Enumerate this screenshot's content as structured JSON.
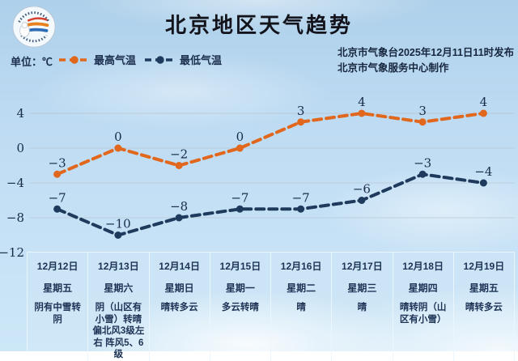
{
  "header": {
    "title": "北京地区天气趋势",
    "unit_label": "单位：℃",
    "issued_line1": "北京市气象台2025年12月11日11时发布",
    "issued_line2": "北京市气象服务中心制作"
  },
  "legend": {
    "high": {
      "label": "最高气温",
      "color": "#e0671c"
    },
    "low": {
      "label": "最低气温",
      "color": "#1e3a5c"
    }
  },
  "chart_data": {
    "type": "line",
    "title": "北京地区天气趋势",
    "unit": "℃",
    "categories": [
      "12月12日",
      "12月13日",
      "12月14日",
      "12月15日",
      "12月16日",
      "12月17日",
      "12月18日",
      "12月19日"
    ],
    "series": [
      {
        "name": "最高气温",
        "color": "#e0671c",
        "values": [
          -3,
          0,
          -2,
          0,
          3,
          4,
          3,
          4
        ]
      },
      {
        "name": "最低气温",
        "color": "#1e3a5c",
        "values": [
          -7,
          -10,
          -8,
          -7,
          -7,
          -6,
          -3,
          -4
        ]
      }
    ],
    "yticks": [
      4,
      0,
      -4,
      -8,
      -12
    ],
    "ylim": [
      -12,
      7
    ],
    "grid": true,
    "line_style": "dashed",
    "marker": "dot",
    "legend_position": "top-left"
  },
  "table": {
    "columns": [
      {
        "date": "12月12日",
        "weekday": "星期五",
        "weather": "阴有中雪转阴"
      },
      {
        "date": "12月13日",
        "weekday": "星期六",
        "weather": "阴（山区有小雪）转晴 偏北风3级左右 阵风5、6级"
      },
      {
        "date": "12月14日",
        "weekday": "星期日",
        "weather": "晴转多云"
      },
      {
        "date": "12月15日",
        "weekday": "星期一",
        "weather": "多云转晴"
      },
      {
        "date": "12月16日",
        "weekday": "星期二",
        "weather": "晴"
      },
      {
        "date": "12月17日",
        "weekday": "星期三",
        "weather": "晴"
      },
      {
        "date": "12月18日",
        "weekday": "星期四",
        "weather": "晴转阴（山区有小雪）"
      },
      {
        "date": "12月19日",
        "weekday": "星期五",
        "weather": "晴转多云"
      }
    ]
  },
  "colors": {
    "high_line": "#e0671c",
    "low_line": "#1e3a5c",
    "text_dark": "#182c49",
    "grid_line": "#b7c2c9"
  }
}
